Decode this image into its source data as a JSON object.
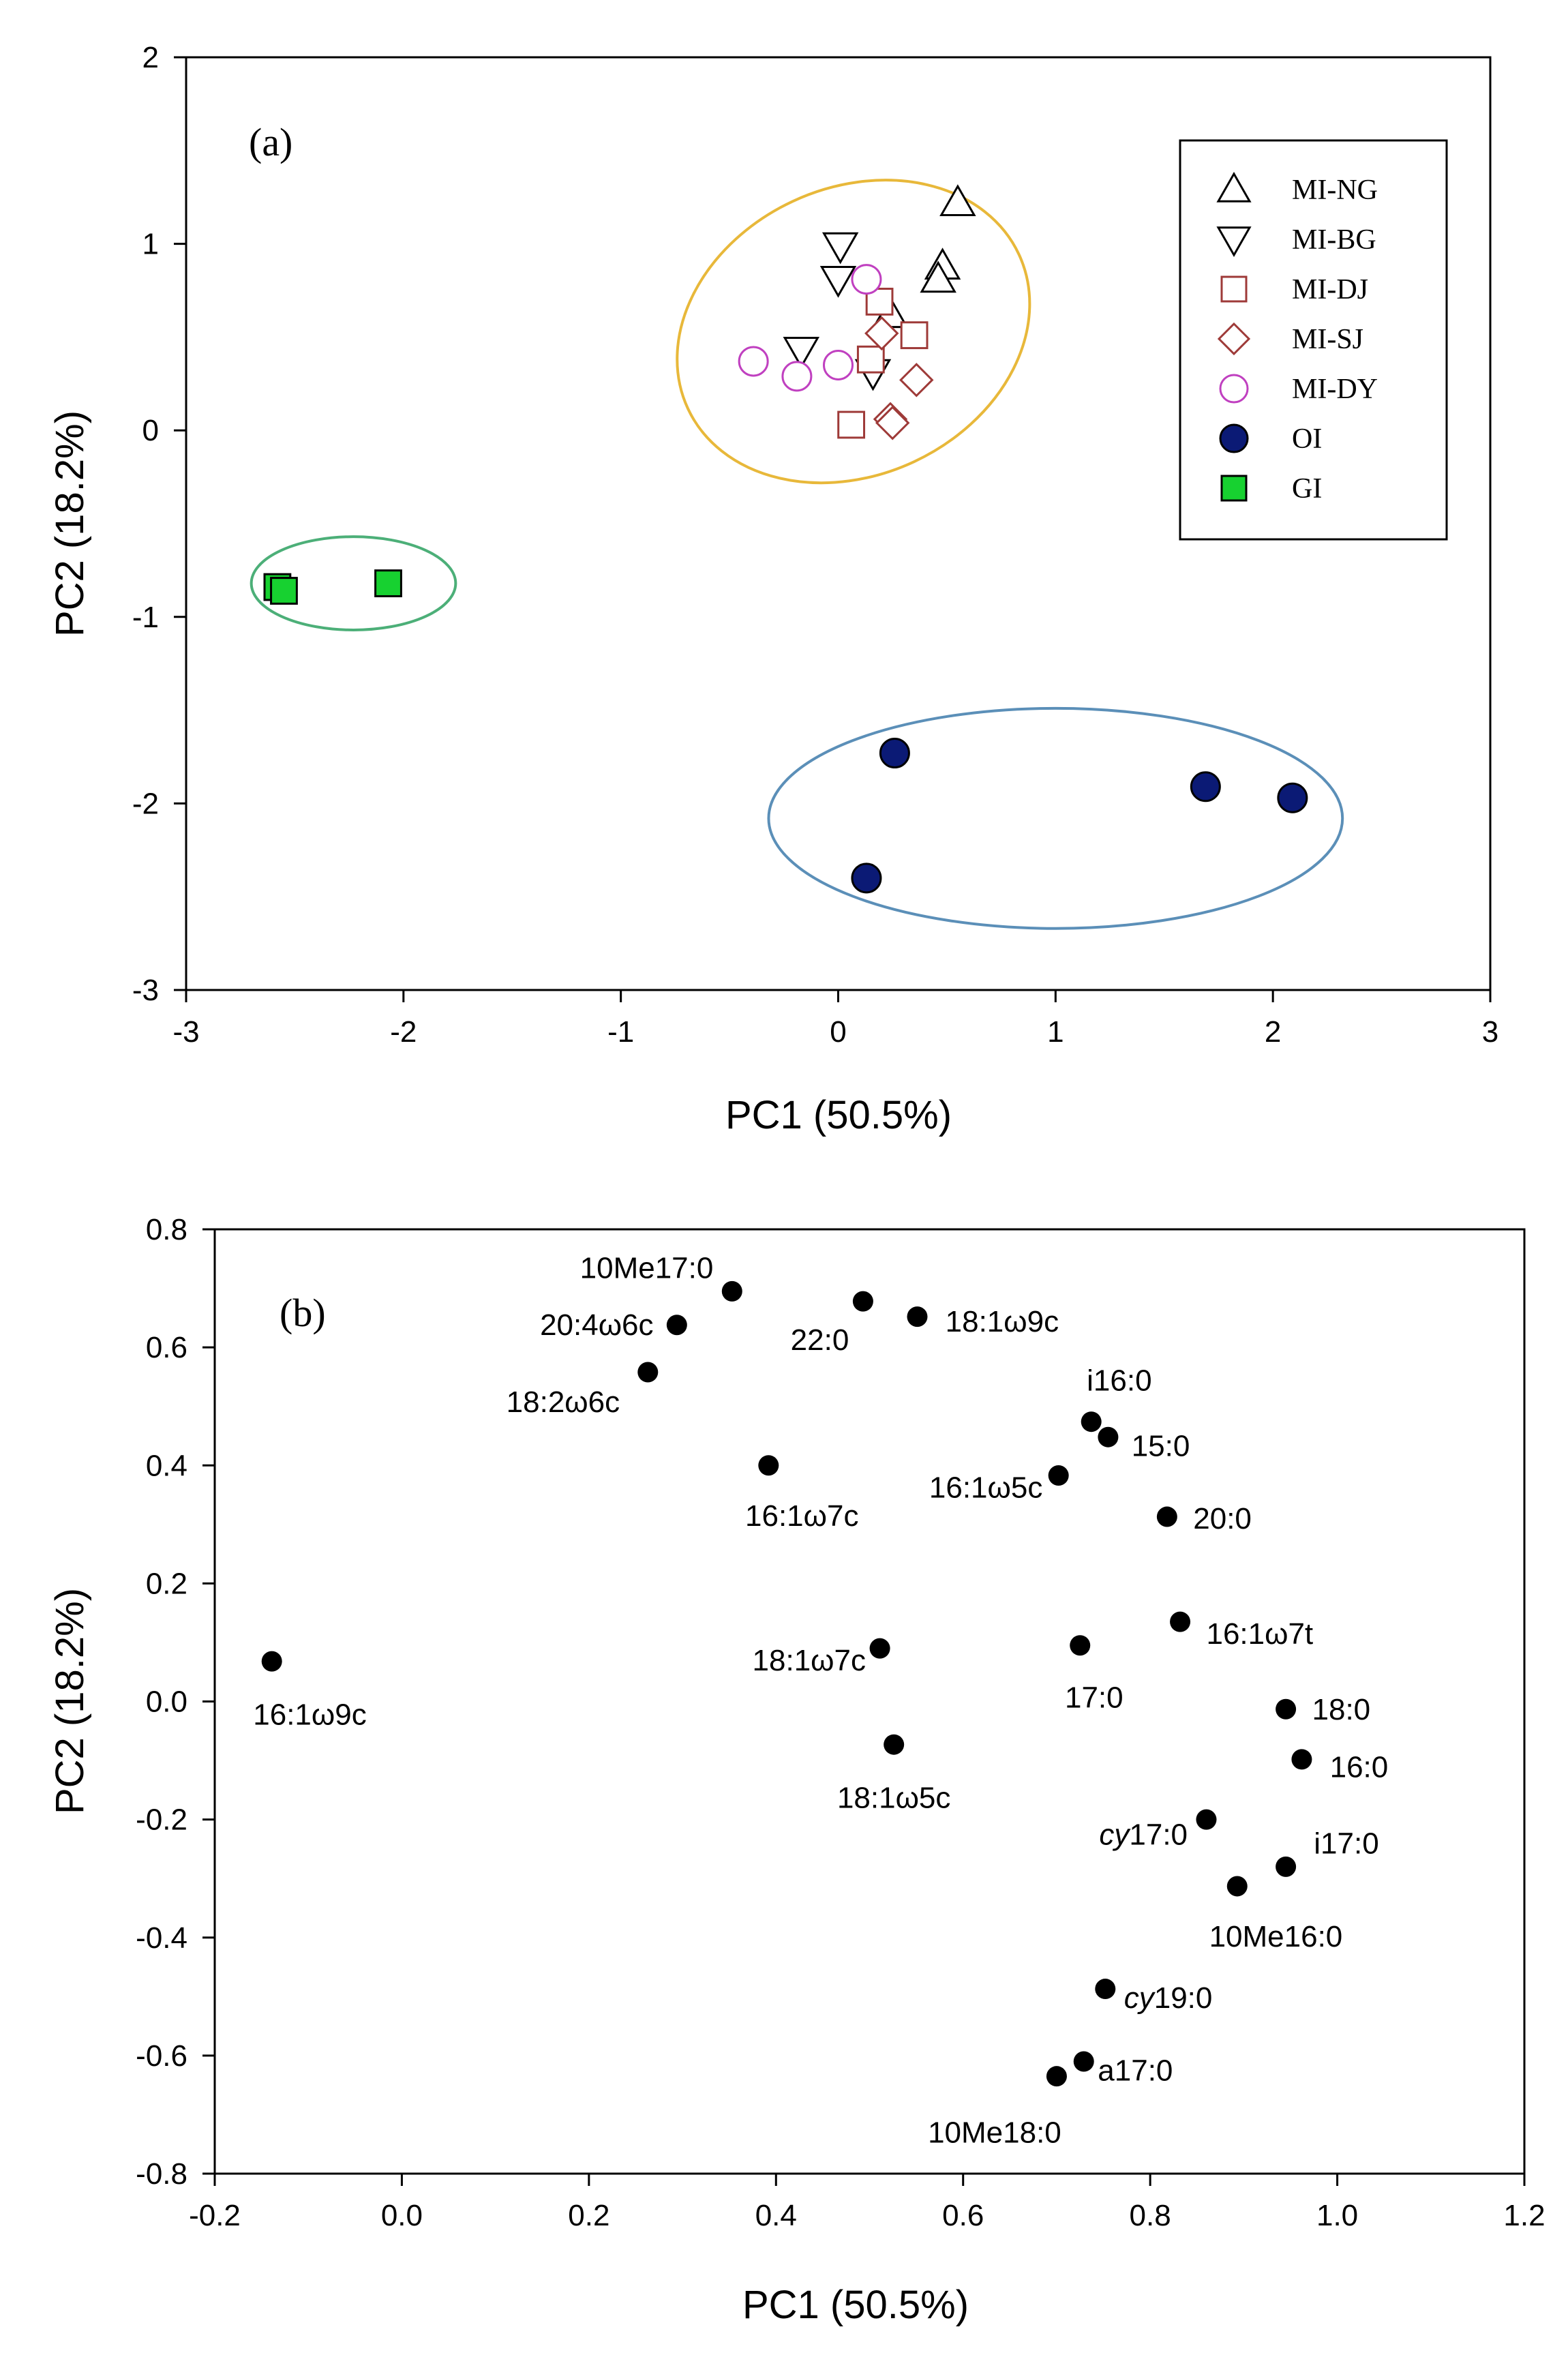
{
  "chart_data": [
    {
      "type": "scatter",
      "panel": "(a)",
      "xlabel": "PC1 (50.5%)",
      "ylabel": "PC2 (18.2%)",
      "xlim": [
        -3,
        3
      ],
      "ylim": [
        -3,
        2
      ],
      "xticks": [
        -3,
        -2,
        -1,
        0,
        1,
        2,
        3
      ],
      "yticks": [
        2,
        1,
        0,
        -1,
        -2,
        -3
      ],
      "legend_position": "top-right",
      "series": [
        {
          "name": "MI-NG",
          "marker": "triangle-up",
          "color": "#000000",
          "filled": false,
          "points": [
            [
              0.55,
              1.22
            ],
            [
              0.48,
              0.88
            ],
            [
              0.46,
              0.81
            ],
            [
              0.24,
              0.62
            ]
          ]
        },
        {
          "name": "MI-BG",
          "marker": "triangle-down",
          "color": "#000000",
          "filled": false,
          "points": [
            [
              0.01,
              0.99
            ],
            [
              0.0,
              0.81
            ],
            [
              -0.17,
              0.43
            ],
            [
              0.16,
              0.31
            ]
          ]
        },
        {
          "name": "MI-DJ",
          "marker": "square",
          "color": "#9e3a38",
          "filled": false,
          "points": [
            [
              0.19,
              0.69
            ],
            [
              0.35,
              0.51
            ],
            [
              0.15,
              0.38
            ],
            [
              0.06,
              0.03
            ]
          ]
        },
        {
          "name": "MI-SJ",
          "marker": "diamond",
          "color": "#9e3a38",
          "filled": false,
          "points": [
            [
              0.2,
              0.52
            ],
            [
              0.36,
              0.27
            ],
            [
              0.24,
              0.06
            ],
            [
              0.25,
              0.04
            ]
          ]
        },
        {
          "name": "MI-DY",
          "marker": "circle",
          "color": "#c040c0",
          "filled": false,
          "points": [
            [
              0.13,
              0.81
            ],
            [
              -0.39,
              0.37
            ],
            [
              -0.19,
              0.29
            ],
            [
              0.0,
              0.35
            ]
          ]
        },
        {
          "name": "OI",
          "marker": "circle",
          "color": "#0b1a75",
          "filled": true,
          "points": [
            [
              0.26,
              -1.73
            ],
            [
              1.69,
              -1.91
            ],
            [
              2.09,
              -1.97
            ],
            [
              0.13,
              -2.4
            ]
          ]
        },
        {
          "name": "GI",
          "marker": "square",
          "color": "#17d130",
          "filled": true,
          "points": [
            [
              -2.58,
              -0.84
            ],
            [
              -2.55,
              -0.86
            ],
            [
              -2.07,
              -0.82
            ]
          ]
        }
      ],
      "ellipses": [
        {
          "group": "MI",
          "color": "#e8b83a",
          "center": [
            0.07,
            0.53
          ],
          "radii": [
            0.84,
            0.77
          ],
          "rotation_deg": -25
        },
        {
          "group": "GI",
          "color": "#4caf78",
          "center": [
            -2.23,
            -0.82
          ],
          "radii": [
            0.47,
            0.25
          ],
          "rotation_deg": 0
        },
        {
          "group": "OI",
          "color": "#5b8fb8",
          "center": [
            1.0,
            -2.08
          ],
          "radii": [
            1.32,
            0.59
          ],
          "rotation_deg": 0
        }
      ]
    },
    {
      "type": "scatter",
      "panel": "(b)",
      "xlabel": "PC1 (50.5%)",
      "ylabel": "PC2 (18.2%)",
      "xlim": [
        -0.2,
        1.2
      ],
      "ylim": [
        -0.8,
        0.8
      ],
      "xticks": [
        "-0.2",
        "0.0",
        "0.2",
        "0.4",
        "0.6",
        "0.8",
        "1.0",
        "1.2"
      ],
      "yticks": [
        "0.8",
        "0.6",
        "0.4",
        "0.2",
        "0.0",
        "-0.2",
        "-0.4",
        "-0.6",
        "-0.8"
      ],
      "marker_color": "#000000",
      "points": [
        {
          "label": "10Me17:0",
          "x": 0.353,
          "y": 0.695,
          "anchor": "end",
          "dx": -0.02,
          "dy": 0.04
        },
        {
          "label": "20:4ω6c",
          "x": 0.294,
          "y": 0.638,
          "anchor": "end",
          "dx": -0.025,
          "dy": 0.0
        },
        {
          "label": "22:0",
          "x": 0.493,
          "y": 0.678,
          "anchor": "end",
          "dx": -0.015,
          "dy": -0.065
        },
        {
          "label": "18:1ω9c",
          "x": 0.551,
          "y": 0.652,
          "anchor": "start",
          "dx": 0.03,
          "dy": -0.008
        },
        {
          "label": "18:2ω6c",
          "x": 0.263,
          "y": 0.558,
          "anchor": "end",
          "dx": -0.03,
          "dy": -0.05
        },
        {
          "label": "i16:0",
          "x": 0.737,
          "y": 0.474,
          "anchor": "middle",
          "dx": 0.03,
          "dy": 0.07
        },
        {
          "label": "15:0",
          "x": 0.755,
          "y": 0.448,
          "anchor": "start",
          "dx": 0.025,
          "dy": -0.015
        },
        {
          "label": "16:1ω7c",
          "x": 0.392,
          "y": 0.4,
          "anchor": "start",
          "dx": -0.025,
          "dy": -0.085
        },
        {
          "label": "16:1ω5c",
          "x": 0.702,
          "y": 0.383,
          "anchor": "end",
          "dx": -0.017,
          "dy": -0.02
        },
        {
          "label": "20:0",
          "x": 0.818,
          "y": 0.313,
          "anchor": "start",
          "dx": 0.028,
          "dy": -0.003
        },
        {
          "label": "16:1ω7t",
          "x": 0.832,
          "y": 0.135,
          "anchor": "start",
          "dx": 0.028,
          "dy": -0.02
        },
        {
          "label": "18:1ω7c",
          "x": 0.511,
          "y": 0.09,
          "anchor": "end",
          "dx": -0.015,
          "dy": -0.02
        },
        {
          "label": "17:0",
          "x": 0.725,
          "y": 0.095,
          "anchor": "middle",
          "dx": 0.015,
          "dy": -0.088
        },
        {
          "label": "16:1ω9c",
          "x": -0.139,
          "y": 0.068,
          "anchor": "start",
          "dx": -0.02,
          "dy": -0.09
        },
        {
          "label": "18:0",
          "x": 0.945,
          "y": -0.013,
          "anchor": "start",
          "dx": 0.028,
          "dy": 0.0
        },
        {
          "label": "18:1ω5c",
          "x": 0.526,
          "y": -0.073,
          "anchor": "middle",
          "dx": 0.0,
          "dy": -0.09
        },
        {
          "label": "16:0",
          "x": 0.962,
          "y": -0.098,
          "anchor": "start",
          "dx": 0.03,
          "dy": -0.013
        },
        {
          "label": "cy17:0",
          "x": 0.86,
          "y": -0.2,
          "anchor": "end",
          "dx": -0.02,
          "dy": -0.025
        },
        {
          "label": "i17:0",
          "x": 0.945,
          "y": -0.28,
          "anchor": "start",
          "dx": 0.03,
          "dy": 0.04
        },
        {
          "label": "10Me16:0",
          "x": 0.893,
          "y": -0.313,
          "anchor": "start",
          "dx": -0.03,
          "dy": -0.085
        },
        {
          "label": "cy19:0",
          "x": 0.752,
          "y": -0.487,
          "anchor": "start",
          "dx": 0.02,
          "dy": -0.015
        },
        {
          "label": "a17:0",
          "x": 0.729,
          "y": -0.61,
          "anchor": "start",
          "dx": 0.015,
          "dy": -0.015
        },
        {
          "label": "10Me18:0",
          "x": 0.7,
          "y": -0.635,
          "anchor": "end",
          "dx": 0.005,
          "dy": -0.095
        }
      ]
    }
  ]
}
